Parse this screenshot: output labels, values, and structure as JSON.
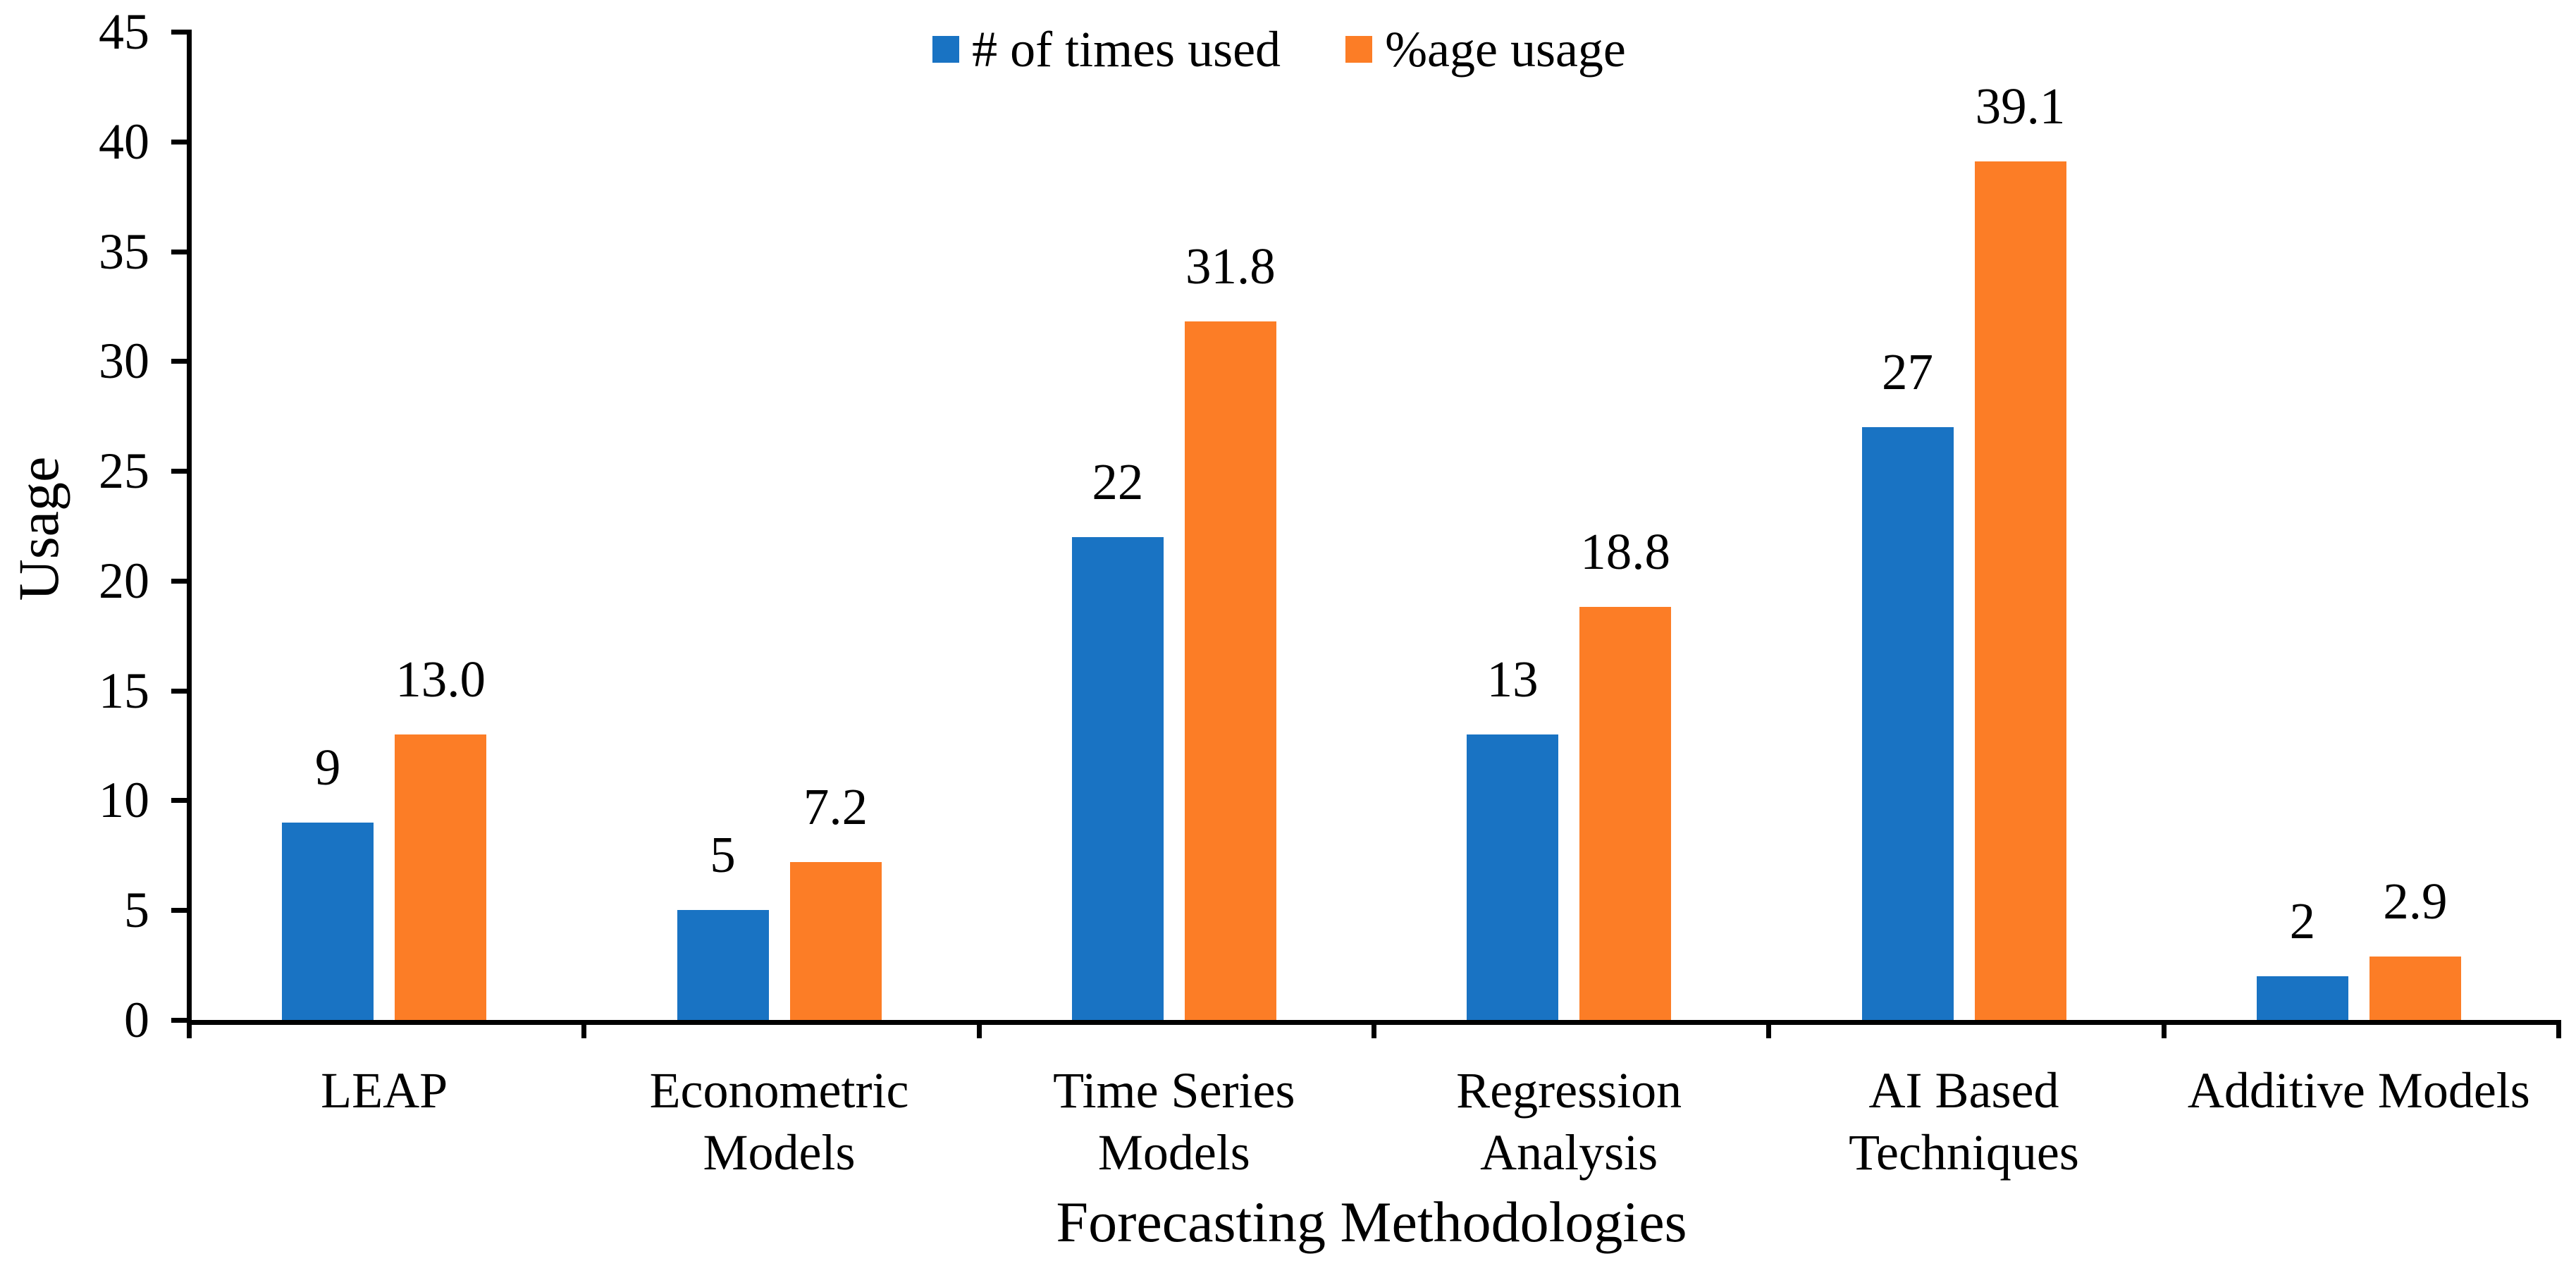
{
  "chart_data": {
    "type": "bar",
    "title": "",
    "xlabel": "Forecasting Methodologies",
    "ylabel": "Usage",
    "categories": [
      "LEAP",
      "Econometric Models",
      "Time Series Models",
      "Regression Analysis",
      "AI Based Techniques",
      "Additive Models"
    ],
    "series": [
      {
        "name": "# of times used",
        "color": "#1973C3",
        "values": [
          9,
          5,
          22,
          13,
          27,
          2
        ],
        "labels": [
          "9",
          "5",
          "22",
          "13",
          "27",
          "2"
        ]
      },
      {
        "name": "%age usage",
        "color": "#FC7D26",
        "values": [
          13.0,
          7.2,
          31.8,
          18.8,
          39.1,
          2.9
        ],
        "labels": [
          "13.0",
          "7.2",
          "31.8",
          "18.8",
          "39.1",
          "2.9"
        ]
      }
    ],
    "ylim": [
      0,
      45
    ],
    "ytick_step": 5,
    "yticks": [
      "0",
      "5",
      "10",
      "15",
      "20",
      "25",
      "30",
      "35",
      "40",
      "45"
    ],
    "grid": false,
    "legend_position": "top-center",
    "axis_color": "#000000",
    "background_color": "#FFFFFF"
  }
}
